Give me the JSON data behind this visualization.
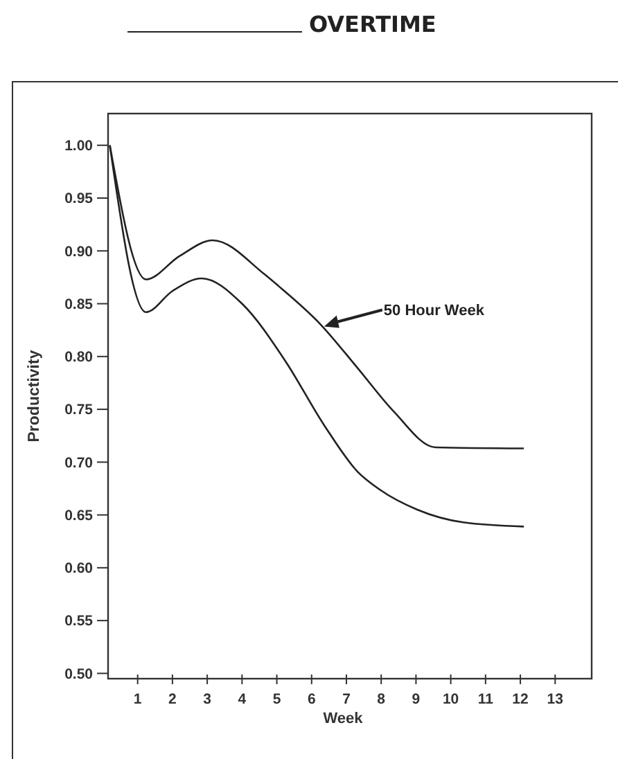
{
  "chart_data": {
    "type": "line",
    "title": "OVERTIME",
    "xlabel": "Week",
    "ylabel": "Productivity",
    "xlim": [
      0.15,
      14.05
    ],
    "ylim": [
      0.495,
      1.03
    ],
    "xticks": [
      1,
      2,
      3,
      4,
      5,
      6,
      7,
      8,
      9,
      10,
      11,
      12,
      13
    ],
    "yticks": [
      {
        "value": 1,
        "label": "1.00"
      },
      {
        "value": 0.95,
        "label": "0.95"
      },
      {
        "value": 0.9,
        "label": "0.90"
      },
      {
        "value": 0.85,
        "label": "0.85"
      },
      {
        "value": 0.8,
        "label": "0.80"
      },
      {
        "value": 0.75,
        "label": "0.75"
      },
      {
        "value": 0.7,
        "label": "0.70"
      },
      {
        "value": 0.65,
        "label": "0.65"
      },
      {
        "value": 0.6,
        "label": "0.60"
      },
      {
        "value": 0.55,
        "label": "0.55"
      },
      {
        "value": 0.5,
        "label": "0.50"
      }
    ],
    "series": [
      {
        "name": "50 Hour Week",
        "color": "#222222",
        "x": [
          0.2,
          1.24,
          2.2,
          3.16,
          4.64,
          5.04,
          6.24,
          7.3,
          8.36,
          9.56,
          12.1
        ],
        "values": [
          1.0,
          0.873,
          0.895,
          0.91,
          0.878,
          0.867,
          0.831,
          0.79,
          0.748,
          0.714,
          0.713
        ]
      },
      {
        "color": "#222222",
        "x": [
          0.2,
          1.24,
          2.0,
          2.84,
          4.0,
          5.24,
          6.36,
          7.32,
          7.96,
          9.04,
          10.36,
          12.1
        ],
        "values": [
          1.0,
          0.842,
          0.862,
          0.874,
          0.85,
          0.796,
          0.735,
          0.691,
          0.674,
          0.655,
          0.643,
          0.639
        ]
      }
    ],
    "marker": "none",
    "line_style": "solid",
    "grid": false
  }
}
